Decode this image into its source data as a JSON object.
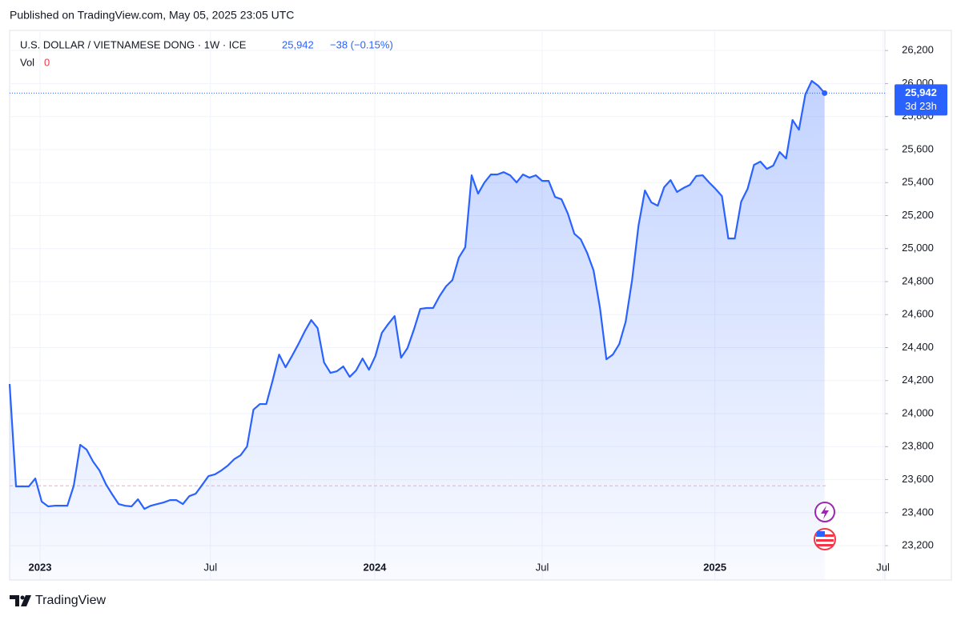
{
  "published": "Published on TradingView.com, May 05, 2025 23:05 UTC",
  "brand": "TradingView",
  "chart_data": {
    "type": "area",
    "title": "U.S. DOLLAR / VIETNAMESE DONG · 1W · ICE",
    "price": {
      "value": 25942,
      "label": "25,942"
    },
    "change": "−38 (−0.15%)",
    "volume_label": "Vol",
    "volume": 0,
    "countdown": "3d 23h",
    "color": "#2962ff",
    "grid": true,
    "baseline": 23563,
    "values": [
      24179,
      23559,
      23559,
      23559,
      23607,
      23467,
      23438,
      23442,
      23442,
      23442,
      23564,
      23811,
      23782,
      23710,
      23656,
      23573,
      23510,
      23452,
      23442,
      23438,
      23481,
      23423,
      23442,
      23452,
      23462,
      23476,
      23476,
      23452,
      23500,
      23515,
      23568,
      23622,
      23632,
      23656,
      23685,
      23724,
      23748,
      23801,
      24024,
      24058,
      24058,
      24203,
      24358,
      24281,
      24349,
      24421,
      24499,
      24567,
      24518,
      24310,
      24247,
      24257,
      24286,
      24223,
      24262,
      24334,
      24266,
      24349,
      24489,
      24543,
      24591,
      24339,
      24397,
      24509,
      24635,
      24640,
      24640,
      24712,
      24771,
      24809,
      24945,
      25008,
      25444,
      25333,
      25401,
      25449,
      25449,
      25463,
      25444,
      25401,
      25449,
      25430,
      25444,
      25410,
      25410,
      25313,
      25299,
      25211,
      25090,
      25056,
      24974,
      24867,
      24640,
      24329,
      24358,
      24421,
      24557,
      24809,
      25139,
      25352,
      25280,
      25260,
      25372,
      25415,
      25343,
      25367,
      25386,
      25440,
      25444,
      25401,
      25362,
      25318,
      25061,
      25061,
      25284,
      25362,
      25507,
      25527,
      25483,
      25503,
      25585,
      25546,
      25779,
      25720,
      25934,
      26016,
      25987,
      25942
    ],
    "ylim": [
      22992,
      26322
    ],
    "yticks": [
      {
        "value": 23200,
        "label": "23,200"
      },
      {
        "value": 23400,
        "label": "23,400"
      },
      {
        "value": 23600,
        "label": "23,600"
      },
      {
        "value": 23800,
        "label": "23,800"
      },
      {
        "value": 24000,
        "label": "24,000"
      },
      {
        "value": 24200,
        "label": "24,200"
      },
      {
        "value": 24400,
        "label": "24,400"
      },
      {
        "value": 24600,
        "label": "24,600"
      },
      {
        "value": 24800,
        "label": "24,800"
      },
      {
        "value": 25000,
        "label": "25,000"
      },
      {
        "value": 25200,
        "label": "25,200"
      },
      {
        "value": 25400,
        "label": "25,400"
      },
      {
        "value": 25600,
        "label": "25,600"
      },
      {
        "value": 25800,
        "label": "25,800"
      },
      {
        "value": 26000,
        "label": "26,000"
      },
      {
        "value": 26200,
        "label": "26,200"
      }
    ],
    "xlim": [
      0,
      136.4
    ],
    "xticks": [
      {
        "value": 4.74,
        "label": "2023"
      },
      {
        "value": 31.3,
        "label": "Jul"
      },
      {
        "value": 56.9,
        "label": "2024"
      },
      {
        "value": 83.0,
        "label": "Jul"
      },
      {
        "value": 109.9,
        "label": "2025"
      },
      {
        "value": 136.1,
        "label": "Jul"
      }
    ]
  }
}
